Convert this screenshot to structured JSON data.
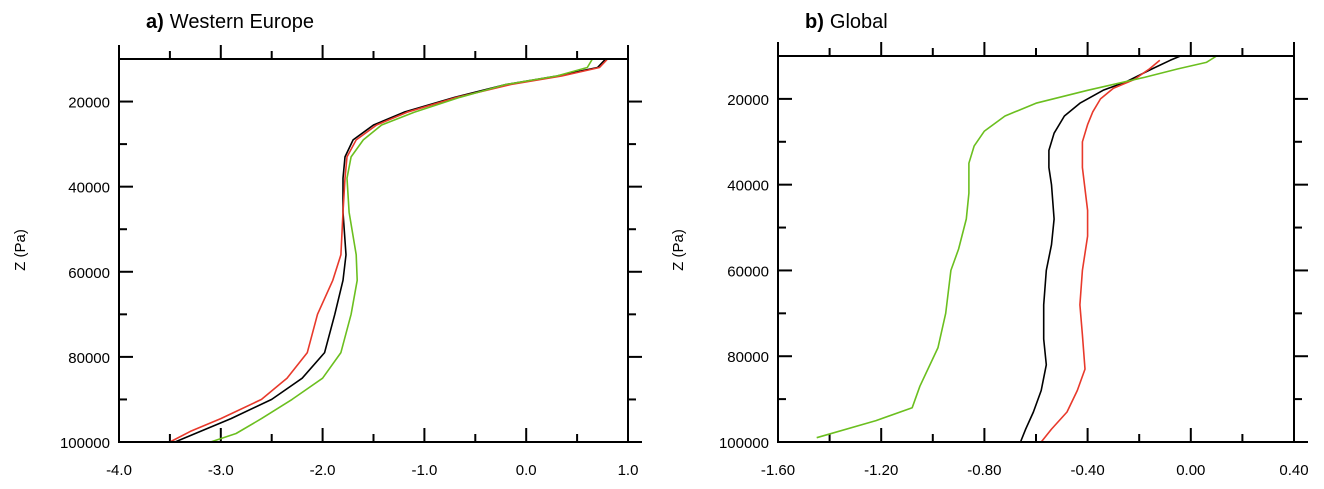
{
  "chart_data": [
    {
      "type": "line",
      "panel_letter": "a)",
      "title": "Western Europe",
      "ylabel": "Z (Pa)",
      "xlabel": "",
      "xlim": [
        -4.0,
        1.0
      ],
      "ylim": [
        10000,
        100000
      ],
      "y_inverted": true,
      "xticks": [
        -4.0,
        -3.0,
        -2.0,
        -1.0,
        0.0,
        1.0
      ],
      "xtick_labels": [
        "-4.0",
        "-3.0",
        "-2.0",
        "-1.0",
        "0.0",
        "1.0"
      ],
      "yticks": [
        20000,
        40000,
        60000,
        80000,
        100000
      ],
      "ytick_labels": [
        "20000",
        "40000",
        "60000",
        "80000",
        "100000"
      ],
      "grid": false,
      "legend": "none",
      "series": [
        {
          "color": "#000000",
          "points": [
            [
              0.78,
              10000
            ],
            [
              0.7,
              12000
            ],
            [
              0.3,
              14000
            ],
            [
              -0.2,
              16000
            ],
            [
              -0.7,
              19000
            ],
            [
              -1.2,
              22500
            ],
            [
              -1.5,
              25500
            ],
            [
              -1.7,
              29000
            ],
            [
              -1.78,
              33000
            ],
            [
              -1.8,
              38000
            ],
            [
              -1.8,
              46000
            ],
            [
              -1.77,
              56000
            ],
            [
              -1.8,
              62000
            ],
            [
              -1.88,
              70000
            ],
            [
              -1.98,
              79000
            ],
            [
              -2.2,
              85000
            ],
            [
              -2.5,
              90000
            ],
            [
              -2.9,
              94500
            ],
            [
              -3.2,
              97500
            ],
            [
              -3.45,
              100000
            ]
          ]
        },
        {
          "color": "#e8392b",
          "points": [
            [
              0.8,
              10000
            ],
            [
              0.72,
              12000
            ],
            [
              0.35,
              14000
            ],
            [
              -0.15,
              16000
            ],
            [
              -0.68,
              19000
            ],
            [
              -1.17,
              22500
            ],
            [
              -1.47,
              25500
            ],
            [
              -1.67,
              29000
            ],
            [
              -1.76,
              33000
            ],
            [
              -1.78,
              38000
            ],
            [
              -1.8,
              46000
            ],
            [
              -1.82,
              56000
            ],
            [
              -1.9,
              62000
            ],
            [
              -2.05,
              70000
            ],
            [
              -2.15,
              79000
            ],
            [
              -2.35,
              85000
            ],
            [
              -2.6,
              90000
            ],
            [
              -3.0,
              94500
            ],
            [
              -3.3,
              97500
            ],
            [
              -3.5,
              100000
            ]
          ]
        },
        {
          "color": "#6bbf1f",
          "points": [
            [
              0.65,
              10000
            ],
            [
              0.6,
              12000
            ],
            [
              0.3,
              14000
            ],
            [
              -0.2,
              16000
            ],
            [
              -0.65,
              19000
            ],
            [
              -1.1,
              22500
            ],
            [
              -1.42,
              25500
            ],
            [
              -1.6,
              29000
            ],
            [
              -1.72,
              33000
            ],
            [
              -1.76,
              38000
            ],
            [
              -1.74,
              46000
            ],
            [
              -1.67,
              56000
            ],
            [
              -1.66,
              62000
            ],
            [
              -1.72,
              70000
            ],
            [
              -1.82,
              79000
            ],
            [
              -2.0,
              85000
            ],
            [
              -2.3,
              90000
            ],
            [
              -2.6,
              94500
            ],
            [
              -2.85,
              98000
            ],
            [
              -3.1,
              100000
            ]
          ]
        }
      ]
    },
    {
      "type": "line",
      "panel_letter": "b)",
      "title": "Global",
      "ylabel": "Z (Pa)",
      "xlabel": "",
      "xlim": [
        -1.6,
        0.4
      ],
      "ylim": [
        10000,
        100000
      ],
      "y_inverted": true,
      "xticks": [
        -1.6,
        -1.2,
        -0.8,
        -0.4,
        0.0,
        0.4
      ],
      "xtick_labels": [
        "-1.60",
        "-1.20",
        "-0.80",
        "-0.40",
        "0.00",
        "0.40"
      ],
      "yticks": [
        20000,
        40000,
        60000,
        80000,
        100000
      ],
      "ytick_labels": [
        "20000",
        "40000",
        "60000",
        "80000",
        "100000"
      ],
      "grid": false,
      "legend": "none",
      "series": [
        {
          "color": "#000000",
          "points": [
            [
              -0.04,
              10000
            ],
            [
              -0.08,
              11000
            ],
            [
              -0.15,
              13000
            ],
            [
              -0.25,
              16000
            ],
            [
              -0.34,
              18000
            ],
            [
              -0.43,
              21000
            ],
            [
              -0.49,
              24000
            ],
            [
              -0.53,
              28000
            ],
            [
              -0.55,
              32000
            ],
            [
              -0.55,
              36000
            ],
            [
              -0.54,
              40000
            ],
            [
              -0.53,
              48000
            ],
            [
              -0.54,
              54000
            ],
            [
              -0.56,
              60000
            ],
            [
              -0.57,
              68000
            ],
            [
              -0.57,
              76000
            ],
            [
              -0.56,
              82000
            ],
            [
              -0.58,
              88000
            ],
            [
              -0.61,
              93000
            ],
            [
              -0.64,
              97000
            ],
            [
              -0.66,
              100000
            ]
          ]
        },
        {
          "color": "#e8392b",
          "points": [
            [
              -0.12,
              11000
            ],
            [
              -0.16,
              13000
            ],
            [
              -0.22,
              15500
            ],
            [
              -0.3,
              17500
            ],
            [
              -0.35,
              20000
            ],
            [
              -0.38,
              23000
            ],
            [
              -0.4,
              26000
            ],
            [
              -0.42,
              30000
            ],
            [
              -0.42,
              36000
            ],
            [
              -0.4,
              46000
            ],
            [
              -0.4,
              52000
            ],
            [
              -0.42,
              60000
            ],
            [
              -0.43,
              68000
            ],
            [
              -0.42,
              75000
            ],
            [
              -0.41,
              83000
            ],
            [
              -0.44,
              88000
            ],
            [
              -0.48,
              93000
            ],
            [
              -0.54,
              97000
            ],
            [
              -0.58,
              100000
            ]
          ]
        },
        {
          "color": "#6bbf1f",
          "points": [
            [
              0.1,
              10000
            ],
            [
              0.06,
              11500
            ],
            [
              -0.05,
              13000
            ],
            [
              -0.18,
              15000
            ],
            [
              -0.4,
              18000
            ],
            [
              -0.6,
              21000
            ],
            [
              -0.72,
              24000
            ],
            [
              -0.8,
              27500
            ],
            [
              -0.84,
              31000
            ],
            [
              -0.86,
              35000
            ],
            [
              -0.86,
              42000
            ],
            [
              -0.87,
              48000
            ],
            [
              -0.9,
              55000
            ],
            [
              -0.93,
              60000
            ],
            [
              -0.95,
              70000
            ],
            [
              -0.98,
              78000
            ],
            [
              -1.05,
              87000
            ],
            [
              -1.08,
              92000
            ],
            [
              -1.22,
              95000
            ],
            [
              -1.45,
              99000
            ]
          ]
        }
      ]
    }
  ]
}
